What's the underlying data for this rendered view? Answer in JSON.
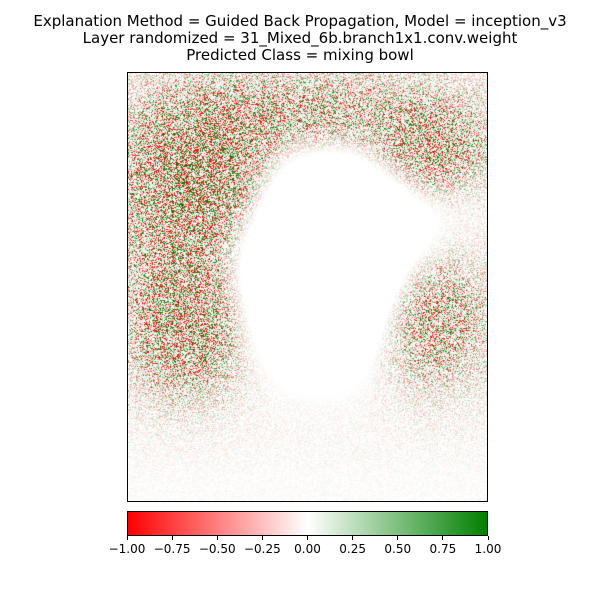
{
  "chart_data": {
    "type": "heatmap",
    "title_lines": [
      "Explanation Method = Guided Back Propagation, Model = inception_v3",
      "Layer randomized = 31_Mixed_6b.branch1x1.conv.weight",
      "Predicted Class = mixing bowl"
    ],
    "xlabel": "",
    "ylabel": "",
    "axes_ticks": false,
    "grid": false,
    "colorbar": {
      "orientation": "horizontal",
      "placement": "bottom",
      "vmin": -1.0,
      "vmax": 1.0,
      "colors": {
        "negative": "#ff0000",
        "zero": "#ffffff",
        "positive": "#008000"
      },
      "tick_values": [
        -1.0,
        -0.75,
        -0.5,
        -0.25,
        0.0,
        0.25,
        0.5,
        0.75,
        1.0
      ],
      "tick_labels": [
        "−1.00",
        "−0.75",
        "−0.50",
        "−0.25",
        "0.00",
        "0.25",
        "0.50",
        "0.75",
        "1.00"
      ]
    }
  }
}
